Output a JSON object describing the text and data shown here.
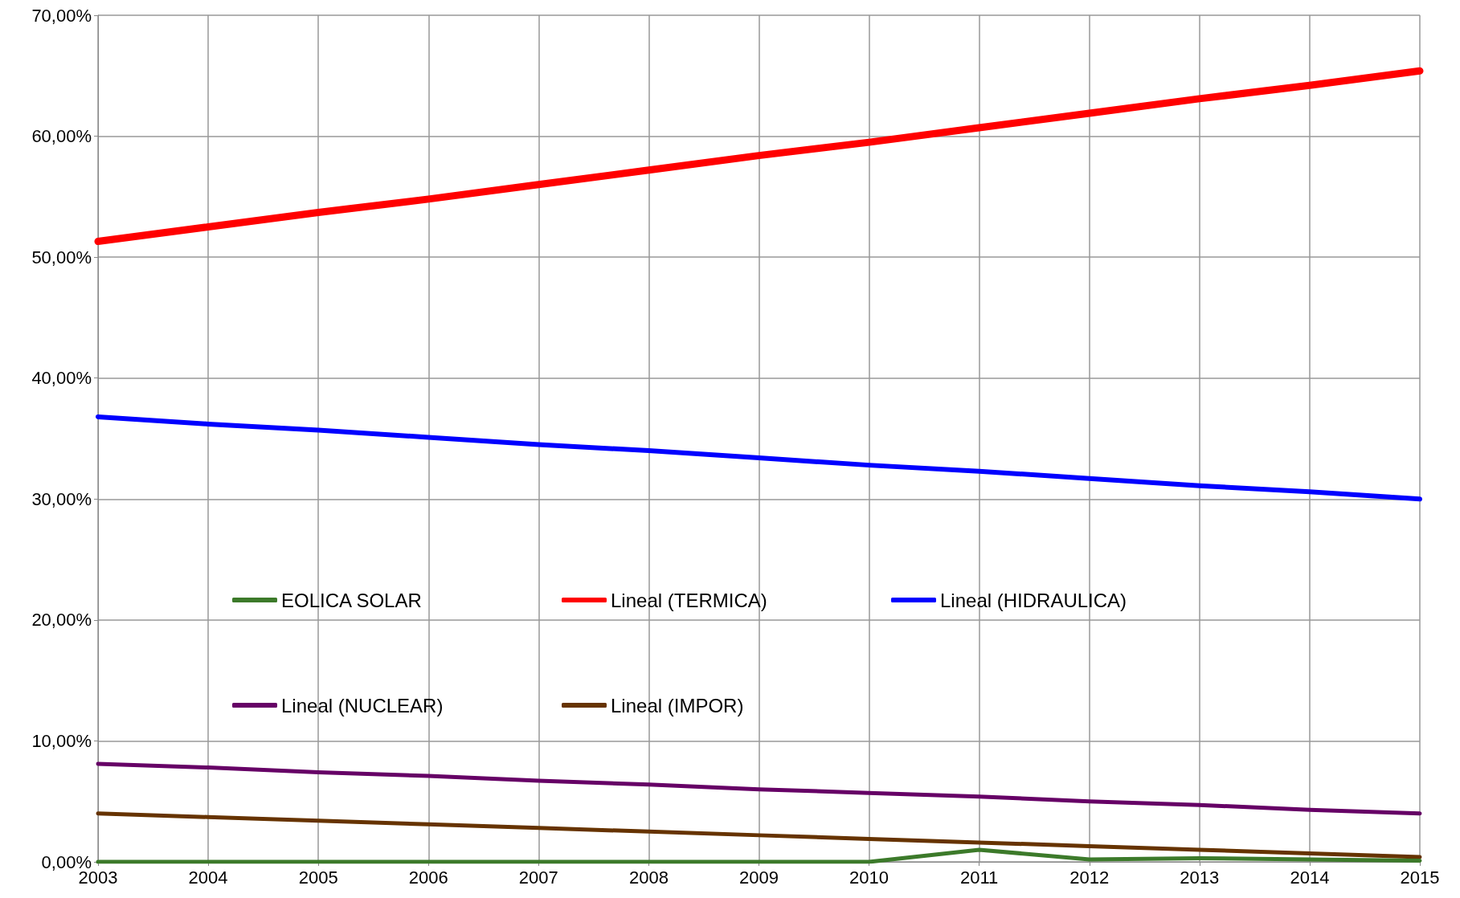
{
  "chart_data": {
    "type": "line",
    "x": [
      2003,
      2004,
      2005,
      2006,
      2007,
      2008,
      2009,
      2010,
      2011,
      2012,
      2013,
      2014,
      2015
    ],
    "series": [
      {
        "name": "EOLICA SOLAR",
        "color": "#3c7a2a",
        "values": [
          0,
          0,
          0,
          0,
          0,
          0,
          0,
          0,
          1.0,
          0.2,
          0.3,
          0.2,
          0.1
        ]
      },
      {
        "name": "Lineal (TERMICA)",
        "color": "#ff0000",
        "values": [
          51.3,
          52.5,
          53.7,
          54.8,
          56.0,
          57.2,
          58.4,
          59.5,
          60.7,
          61.9,
          63.1,
          64.2,
          65.4
        ]
      },
      {
        "name": "Lineal (HIDRAULICA)",
        "color": "#0000ff",
        "values": [
          36.8,
          36.2,
          35.7,
          35.1,
          34.5,
          34.0,
          33.4,
          32.8,
          32.3,
          31.7,
          31.1,
          30.6,
          30.0
        ]
      },
      {
        "name": "Lineal (NUCLEAR)",
        "color": "#660066",
        "values": [
          8.1,
          7.8,
          7.4,
          7.1,
          6.7,
          6.4,
          6.0,
          5.7,
          5.4,
          5.0,
          4.7,
          4.3,
          4.0
        ]
      },
      {
        "name": "Lineal (IMPOR)",
        "color": "#663300",
        "values": [
          4.0,
          3.7,
          3.4,
          3.1,
          2.8,
          2.5,
          2.2,
          1.9,
          1.6,
          1.3,
          1.0,
          0.7,
          0.4
        ]
      }
    ],
    "xlim": [
      2003,
      2015
    ],
    "xticks": [
      2003,
      2004,
      2005,
      2006,
      2007,
      2008,
      2009,
      2010,
      2011,
      2012,
      2013,
      2014,
      2015
    ],
    "ylim": [
      0,
      70
    ],
    "yticks": [
      {
        "value": 0,
        "label": "0,00%"
      },
      {
        "value": 10,
        "label": "10,00%"
      },
      {
        "value": 20,
        "label": "20,00%"
      },
      {
        "value": 30,
        "label": "30,00%"
      },
      {
        "value": 40,
        "label": "40,00%"
      },
      {
        "value": 50,
        "label": "50,00%"
      },
      {
        "value": 60,
        "label": "60,00%"
      },
      {
        "value": 70,
        "label": "70,00%"
      }
    ],
    "grid": true,
    "legend": "bottom",
    "marker": "none",
    "line_style": "solid"
  }
}
